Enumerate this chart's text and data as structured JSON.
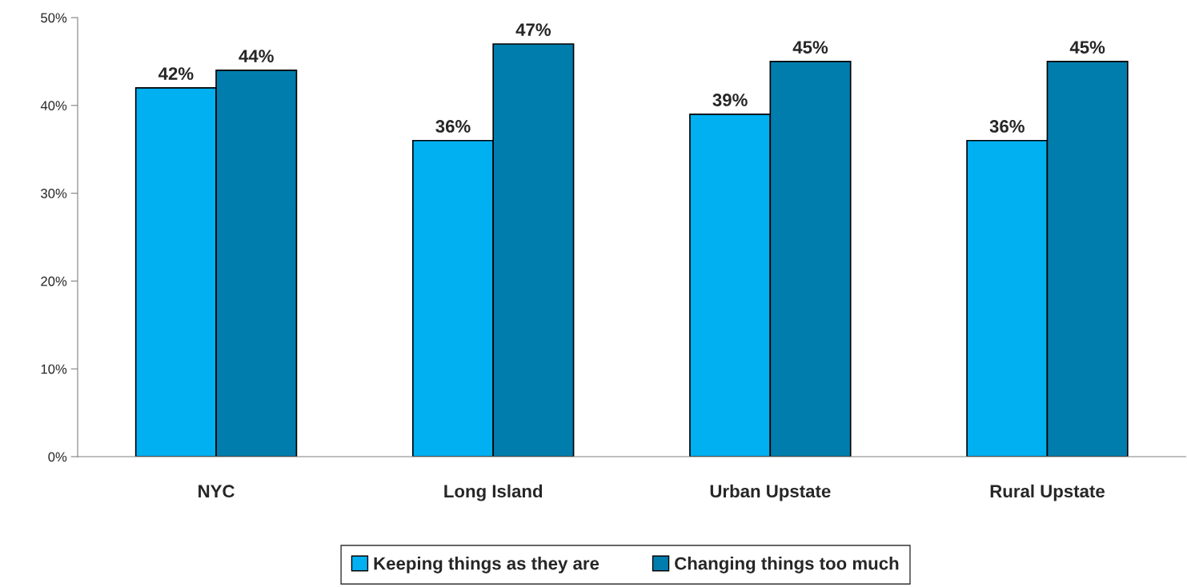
{
  "chart_data": {
    "type": "bar",
    "categories": [
      "NYC",
      "Long Island",
      "Urban Upstate",
      "Rural Upstate"
    ],
    "series": [
      {
        "name": "Keeping things as they are",
        "color": "#00b0f0",
        "values": [
          42,
          36,
          39,
          36
        ],
        "value_labels": [
          "42%",
          "36%",
          "39%",
          "36%"
        ]
      },
      {
        "name": "Changing things too much",
        "color": "#007dad",
        "values": [
          44,
          47,
          45,
          45
        ],
        "value_labels": [
          "44%",
          "47%",
          "45%",
          "45%"
        ]
      }
    ],
    "ylim": [
      0,
      50
    ],
    "yticks": [
      {
        "value": 0,
        "label": "0%"
      },
      {
        "value": 10,
        "label": "10%"
      },
      {
        "value": 20,
        "label": "20%"
      },
      {
        "value": 30,
        "label": "30%"
      },
      {
        "value": 40,
        "label": "40%"
      },
      {
        "value": 50,
        "label": "50%"
      }
    ],
    "grid": false,
    "legend": "bottom"
  }
}
